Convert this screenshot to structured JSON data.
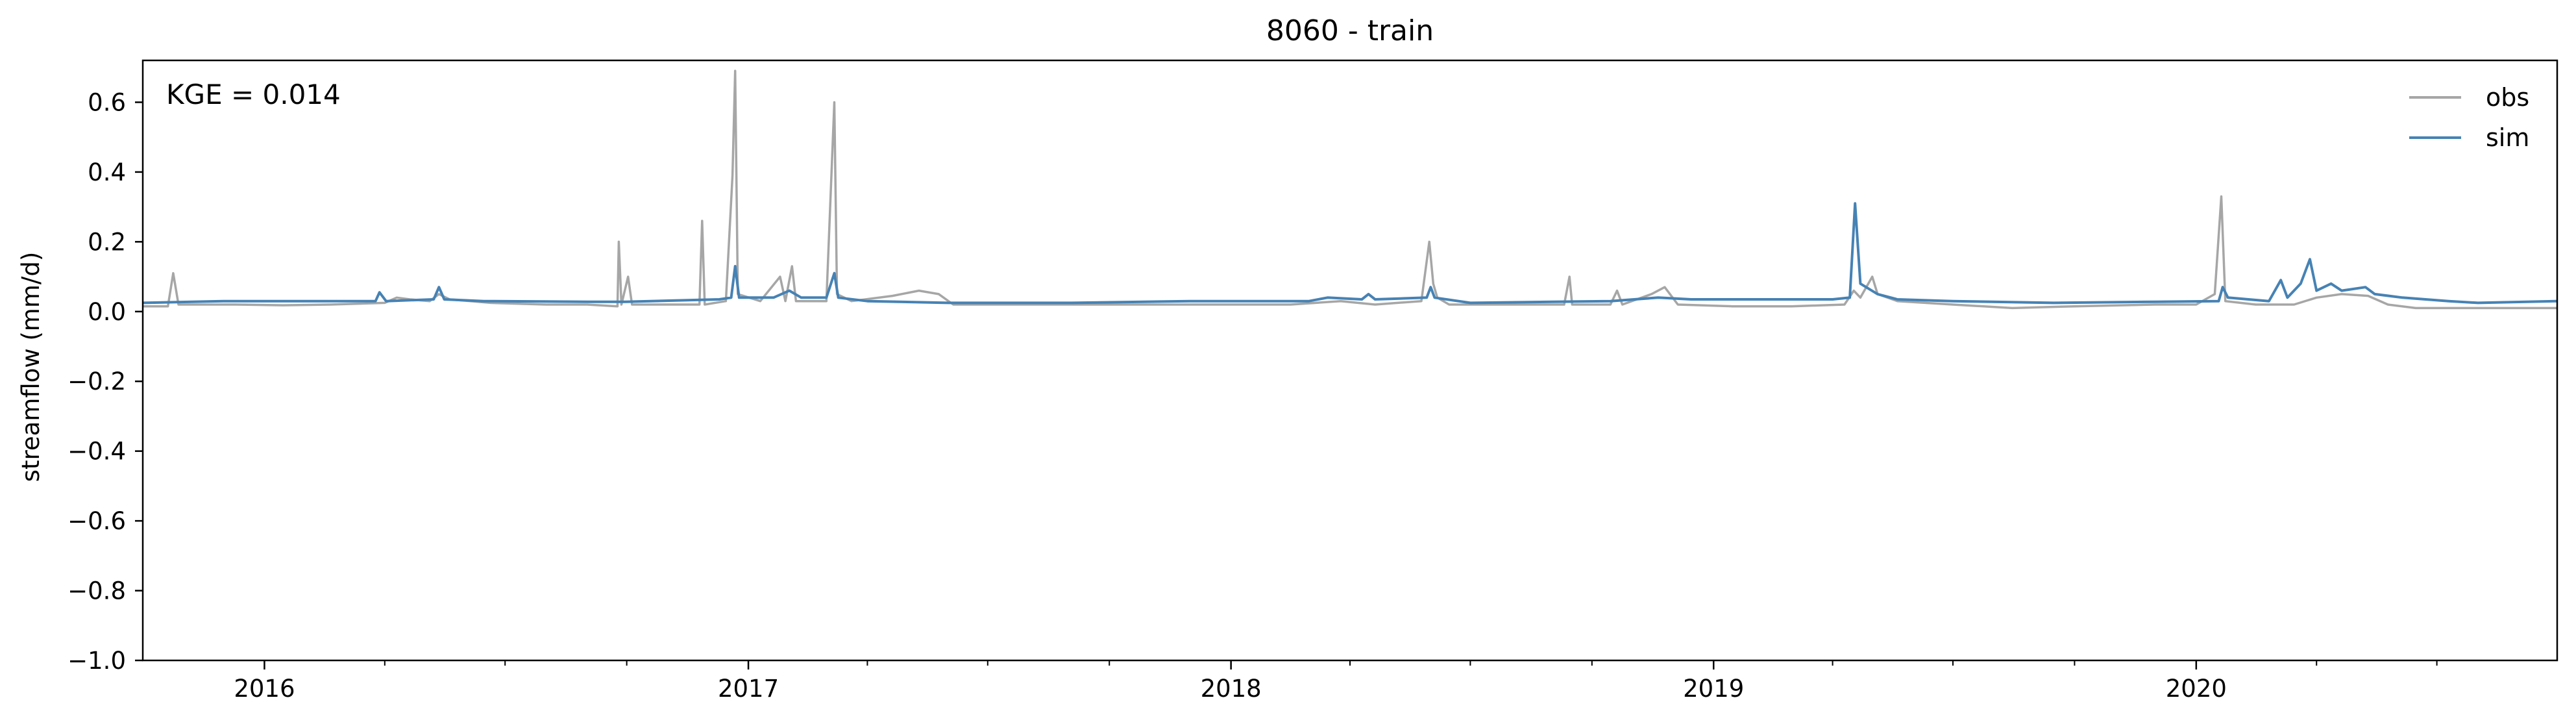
{
  "chart_data": {
    "type": "line",
    "title": "8060 - train",
    "ylabel": "streamflow (mm/d)",
    "xlabel": "",
    "annotation": "KGE = 0.014",
    "xlim": [
      "2015-10-01",
      "2020-09-30"
    ],
    "ylim": [
      -1.0,
      0.72
    ],
    "grid": false,
    "legend_position": "top-right",
    "x_ticks_major": [
      "2016-01-01",
      "2017-01-01",
      "2018-01-01",
      "2019-01-01",
      "2020-01-01"
    ],
    "x_tick_labels": [
      "2016",
      "2017",
      "2018",
      "2019",
      "2020"
    ],
    "x_ticks_minor": [
      "2016-04-01",
      "2016-07-01",
      "2016-10-01",
      "2017-04-01",
      "2017-07-01",
      "2017-10-01",
      "2018-04-01",
      "2018-07-01",
      "2018-10-01",
      "2019-04-01",
      "2019-07-01",
      "2019-10-01",
      "2020-04-01",
      "2020-07-01"
    ],
    "y_ticks": [
      -1.0,
      -0.8,
      -0.6,
      -0.4,
      -0.2,
      0.0,
      0.2,
      0.4,
      0.6
    ],
    "y_tick_labels": [
      "−1.0",
      "−0.8",
      "−0.6",
      "−0.4",
      "−0.2",
      "0.0",
      "0.2",
      "0.4",
      "0.6"
    ],
    "series": [
      {
        "name": "obs",
        "color": "#a6a6a6",
        "points": [
          [
            "2015-10-01",
            0.015
          ],
          [
            "2015-10-20",
            0.015
          ],
          [
            "2015-10-24",
            0.11
          ],
          [
            "2015-10-28",
            0.02
          ],
          [
            "2015-11-20",
            0.02
          ],
          [
            "2015-12-10",
            0.02
          ],
          [
            "2016-01-15",
            0.018
          ],
          [
            "2016-02-20",
            0.02
          ],
          [
            "2016-04-01",
            0.025
          ],
          [
            "2016-04-10",
            0.04
          ],
          [
            "2016-04-20",
            0.035
          ],
          [
            "2016-05-05",
            0.03
          ],
          [
            "2016-05-12",
            0.05
          ],
          [
            "2016-05-20",
            0.035
          ],
          [
            "2016-06-20",
            0.025
          ],
          [
            "2016-08-01",
            0.02
          ],
          [
            "2016-09-01",
            0.02
          ],
          [
            "2016-09-24",
            0.015
          ],
          [
            "2016-09-25",
            0.2
          ],
          [
            "2016-09-27",
            0.02
          ],
          [
            "2016-10-02",
            0.1
          ],
          [
            "2016-10-05",
            0.02
          ],
          [
            "2016-11-01",
            0.02
          ],
          [
            "2016-11-25",
            0.02
          ],
          [
            "2016-11-27",
            0.26
          ],
          [
            "2016-11-29",
            0.02
          ],
          [
            "2016-12-15",
            0.03
          ],
          [
            "2016-12-20",
            0.39
          ],
          [
            "2016-12-22",
            0.69
          ],
          [
            "2016-12-24",
            0.05
          ],
          [
            "2017-01-10",
            0.03
          ],
          [
            "2017-01-25",
            0.1
          ],
          [
            "2017-01-29",
            0.03
          ],
          [
            "2017-02-03",
            0.13
          ],
          [
            "2017-02-06",
            0.03
          ],
          [
            "2017-03-01",
            0.03
          ],
          [
            "2017-03-07",
            0.6
          ],
          [
            "2017-03-09",
            0.05
          ],
          [
            "2017-03-20",
            0.03
          ],
          [
            "2017-04-20",
            0.045
          ],
          [
            "2017-05-10",
            0.06
          ],
          [
            "2017-05-25",
            0.05
          ],
          [
            "2017-06-05",
            0.02
          ],
          [
            "2017-07-15",
            0.02
          ],
          [
            "2017-09-01",
            0.02
          ],
          [
            "2017-11-01",
            0.02
          ],
          [
            "2018-01-01",
            0.02
          ],
          [
            "2018-02-15",
            0.02
          ],
          [
            "2018-03-25",
            0.03
          ],
          [
            "2018-04-20",
            0.02
          ],
          [
            "2018-05-25",
            0.03
          ],
          [
            "2018-05-31",
            0.2
          ],
          [
            "2018-06-03",
            0.08
          ],
          [
            "2018-06-06",
            0.04
          ],
          [
            "2018-06-15",
            0.02
          ],
          [
            "2018-07-20",
            0.02
          ],
          [
            "2018-09-10",
            0.02
          ],
          [
            "2018-09-14",
            0.1
          ],
          [
            "2018-09-16",
            0.02
          ],
          [
            "2018-10-15",
            0.02
          ],
          [
            "2018-10-20",
            0.06
          ],
          [
            "2018-10-24",
            0.02
          ],
          [
            "2018-11-15",
            0.05
          ],
          [
            "2018-11-25",
            0.07
          ],
          [
            "2018-12-05",
            0.02
          ],
          [
            "2019-01-15",
            0.015
          ],
          [
            "2019-03-01",
            0.015
          ],
          [
            "2019-04-10",
            0.02
          ],
          [
            "2019-04-17",
            0.06
          ],
          [
            "2019-04-22",
            0.04
          ],
          [
            "2019-05-01",
            0.1
          ],
          [
            "2019-05-05",
            0.05
          ],
          [
            "2019-05-20",
            0.03
          ],
          [
            "2019-07-01",
            0.02
          ],
          [
            "2019-08-15",
            0.01
          ],
          [
            "2019-10-01",
            0.015
          ],
          [
            "2019-12-01",
            0.02
          ],
          [
            "2020-01-01",
            0.02
          ],
          [
            "2020-01-15",
            0.05
          ],
          [
            "2020-01-20",
            0.33
          ],
          [
            "2020-01-23",
            0.03
          ],
          [
            "2020-02-15",
            0.02
          ],
          [
            "2020-03-15",
            0.02
          ],
          [
            "2020-04-01",
            0.04
          ],
          [
            "2020-04-20",
            0.05
          ],
          [
            "2020-05-10",
            0.045
          ],
          [
            "2020-05-25",
            0.02
          ],
          [
            "2020-06-15",
            0.01
          ],
          [
            "2020-07-15",
            0.01
          ],
          [
            "2020-09-30",
            0.01
          ]
        ]
      },
      {
        "name": "sim",
        "color": "#4682b4",
        "points": [
          [
            "2015-10-01",
            0.025
          ],
          [
            "2015-12-01",
            0.03
          ],
          [
            "2016-02-01",
            0.03
          ],
          [
            "2016-03-25",
            0.03
          ],
          [
            "2016-03-28",
            0.055
          ],
          [
            "2016-04-02",
            0.03
          ],
          [
            "2016-05-08",
            0.035
          ],
          [
            "2016-05-12",
            0.07
          ],
          [
            "2016-05-16",
            0.035
          ],
          [
            "2016-06-15",
            0.03
          ],
          [
            "2016-09-01",
            0.028
          ],
          [
            "2016-09-30",
            0.028
          ],
          [
            "2016-12-10",
            0.035
          ],
          [
            "2016-12-19",
            0.04
          ],
          [
            "2016-12-22",
            0.13
          ],
          [
            "2016-12-25",
            0.04
          ],
          [
            "2017-01-20",
            0.04
          ],
          [
            "2017-02-01",
            0.06
          ],
          [
            "2017-02-10",
            0.04
          ],
          [
            "2017-03-01",
            0.04
          ],
          [
            "2017-03-07",
            0.11
          ],
          [
            "2017-03-10",
            0.04
          ],
          [
            "2017-04-01",
            0.03
          ],
          [
            "2017-06-01",
            0.025
          ],
          [
            "2017-09-01",
            0.025
          ],
          [
            "2017-12-01",
            0.03
          ],
          [
            "2018-03-01",
            0.03
          ],
          [
            "2018-03-15",
            0.04
          ],
          [
            "2018-04-10",
            0.035
          ],
          [
            "2018-04-15",
            0.05
          ],
          [
            "2018-04-20",
            0.035
          ],
          [
            "2018-05-29",
            0.04
          ],
          [
            "2018-06-01",
            0.07
          ],
          [
            "2018-06-04",
            0.04
          ],
          [
            "2018-07-01",
            0.025
          ],
          [
            "2018-09-01",
            0.028
          ],
          [
            "2018-10-15",
            0.03
          ],
          [
            "2018-11-20",
            0.04
          ],
          [
            "2018-12-15",
            0.035
          ],
          [
            "2019-02-01",
            0.035
          ],
          [
            "2019-04-01",
            0.035
          ],
          [
            "2019-04-14",
            0.04
          ],
          [
            "2019-04-18",
            0.31
          ],
          [
            "2019-04-22",
            0.08
          ],
          [
            "2019-05-05",
            0.05
          ],
          [
            "2019-05-20",
            0.035
          ],
          [
            "2019-07-01",
            0.03
          ],
          [
            "2019-09-15",
            0.025
          ],
          [
            "2019-12-01",
            0.028
          ],
          [
            "2020-01-18",
            0.03
          ],
          [
            "2020-01-21",
            0.07
          ],
          [
            "2020-01-25",
            0.04
          ],
          [
            "2020-02-25",
            0.03
          ],
          [
            "2020-03-05",
            0.09
          ],
          [
            "2020-03-10",
            0.04
          ],
          [
            "2020-03-20",
            0.08
          ],
          [
            "2020-03-27",
            0.15
          ],
          [
            "2020-04-01",
            0.06
          ],
          [
            "2020-04-12",
            0.08
          ],
          [
            "2020-04-20",
            0.06
          ],
          [
            "2020-05-08",
            0.07
          ],
          [
            "2020-05-15",
            0.05
          ],
          [
            "2020-06-05",
            0.04
          ],
          [
            "2020-07-10",
            0.03
          ],
          [
            "2020-08-01",
            0.025
          ],
          [
            "2020-09-30",
            0.03
          ]
        ]
      }
    ]
  }
}
